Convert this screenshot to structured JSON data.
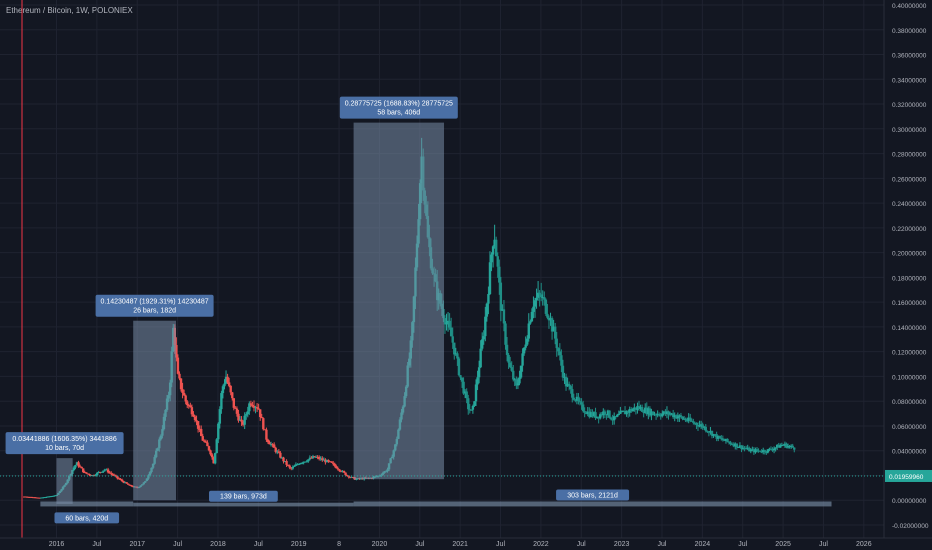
{
  "chart_data": {
    "type": "candlestick",
    "title": "Ethereum / Bitcoin, 1W, POLONIEX",
    "x_ticks": [
      "2016",
      "Jul",
      "2017",
      "Jul",
      "2018",
      "Jul",
      "2019",
      "8",
      "2020",
      "Jul",
      "2021",
      "Jul",
      "2022",
      "Jul",
      "2023",
      "Jul",
      "2024",
      "Jul",
      "2025",
      "Jul",
      "2026"
    ],
    "y_ticks": [
      "0.40000000",
      "0.38000000",
      "0.36000000",
      "0.34000000",
      "0.32000000",
      "0.30000000",
      "0.28000000",
      "0.26000000",
      "0.24000000",
      "0.22000000",
      "0.20000000",
      "0.18000000",
      "0.16000000",
      "0.14000000",
      "0.12000000",
      "0.10000000",
      "0.08000000",
      "0.06000000",
      "0.04000000",
      "0.02000000",
      "0.00000000",
      "-0.02000000"
    ],
    "ylim": [
      -0.02,
      0.4
    ],
    "xlim": [
      2015.3,
      2026.25
    ],
    "current_price": "0.01959960",
    "colors": {
      "up": "#26a69a",
      "down": "#ef5350",
      "measure": "#4a6fa5",
      "price_line": "#26a69a",
      "background": "#131722"
    },
    "price_path": [
      [
        2015.6,
        0.003
      ],
      [
        2015.8,
        0.002
      ],
      [
        2016.0,
        0.004
      ],
      [
        2016.1,
        0.012
      ],
      [
        2016.2,
        0.025
      ],
      [
        2016.25,
        0.03
      ],
      [
        2016.35,
        0.022
      ],
      [
        2016.45,
        0.02
      ],
      [
        2016.6,
        0.025
      ],
      [
        2016.75,
        0.018
      ],
      [
        2016.9,
        0.012
      ],
      [
        2017.0,
        0.01
      ],
      [
        2017.1,
        0.015
      ],
      [
        2017.2,
        0.03
      ],
      [
        2017.3,
        0.055
      ],
      [
        2017.4,
        0.09
      ],
      [
        2017.45,
        0.142
      ],
      [
        2017.5,
        0.1
      ],
      [
        2017.6,
        0.08
      ],
      [
        2017.7,
        0.07
      ],
      [
        2017.8,
        0.05
      ],
      [
        2017.9,
        0.04
      ],
      [
        2017.95,
        0.03
      ],
      [
        2018.05,
        0.09
      ],
      [
        2018.1,
        0.1
      ],
      [
        2018.2,
        0.075
      ],
      [
        2018.3,
        0.06
      ],
      [
        2018.4,
        0.08
      ],
      [
        2018.5,
        0.075
      ],
      [
        2018.6,
        0.05
      ],
      [
        2018.8,
        0.033
      ],
      [
        2018.9,
        0.025
      ],
      [
        2019.0,
        0.03
      ],
      [
        2019.2,
        0.035
      ],
      [
        2019.4,
        0.03
      ],
      [
        2019.6,
        0.02
      ],
      [
        2019.7,
        0.017
      ],
      [
        2019.9,
        0.018
      ],
      [
        2020.0,
        0.02
      ],
      [
        2020.1,
        0.025
      ],
      [
        2020.2,
        0.045
      ],
      [
        2020.3,
        0.08
      ],
      [
        2020.4,
        0.13
      ],
      [
        2020.45,
        0.19
      ],
      [
        2020.52,
        0.28
      ],
      [
        2020.6,
        0.21
      ],
      [
        2020.7,
        0.17
      ],
      [
        2020.9,
        0.13
      ],
      [
        2021.0,
        0.1
      ],
      [
        2021.1,
        0.075
      ],
      [
        2021.15,
        0.07
      ],
      [
        2021.3,
        0.14
      ],
      [
        2021.42,
        0.22
      ],
      [
        2021.5,
        0.16
      ],
      [
        2021.6,
        0.11
      ],
      [
        2021.7,
        0.09
      ],
      [
        2021.9,
        0.16
      ],
      [
        2022.0,
        0.165
      ],
      [
        2022.1,
        0.15
      ],
      [
        2022.2,
        0.125
      ],
      [
        2022.3,
        0.095
      ],
      [
        2022.5,
        0.075
      ],
      [
        2022.6,
        0.07
      ],
      [
        2022.7,
        0.068
      ],
      [
        2022.8,
        0.072
      ],
      [
        2022.9,
        0.065
      ],
      [
        2023.0,
        0.07
      ],
      [
        2023.2,
        0.075
      ],
      [
        2023.4,
        0.07
      ],
      [
        2023.6,
        0.07
      ],
      [
        2023.8,
        0.065
      ],
      [
        2024.0,
        0.06
      ],
      [
        2024.2,
        0.05
      ],
      [
        2024.4,
        0.045
      ],
      [
        2024.6,
        0.04
      ],
      [
        2024.8,
        0.04
      ],
      [
        2025.0,
        0.045
      ],
      [
        2025.15,
        0.042
      ]
    ],
    "measurements": [
      {
        "label1": "0.03441886 (1606.35%) 3441886",
        "label2": "10 bars, 70d",
        "x1": 2016.0,
        "x2": 2016.2,
        "y1": -0.003,
        "y2": 0.034
      },
      {
        "label1": "0.14230487 (1929.31%) 14230487",
        "label2": "26 bars, 182d",
        "x1": 2016.95,
        "x2": 2017.48,
        "y1": 0.0,
        "y2": 0.145
      },
      {
        "label1": "0.28775725 (1688.83%) 28775725",
        "label2": "58 bars, 406d",
        "x1": 2019.68,
        "x2": 2020.8,
        "y1": 0.017,
        "y2": 0.305
      }
    ],
    "ranges": [
      {
        "label": "60 bars, 420d",
        "x1": 2015.8,
        "x2": 2016.95,
        "y1": -0.005,
        "y2": -0.001
      },
      {
        "label": "139 bars, 973d",
        "x1": 2016.95,
        "x2": 2019.68,
        "y1": -0.005,
        "y2": -0.002
      },
      {
        "label": "303 bars, 2121d",
        "x1": 2019.68,
        "x2": 2025.6,
        "y1": -0.005,
        "y2": -0.001
      }
    ]
  }
}
